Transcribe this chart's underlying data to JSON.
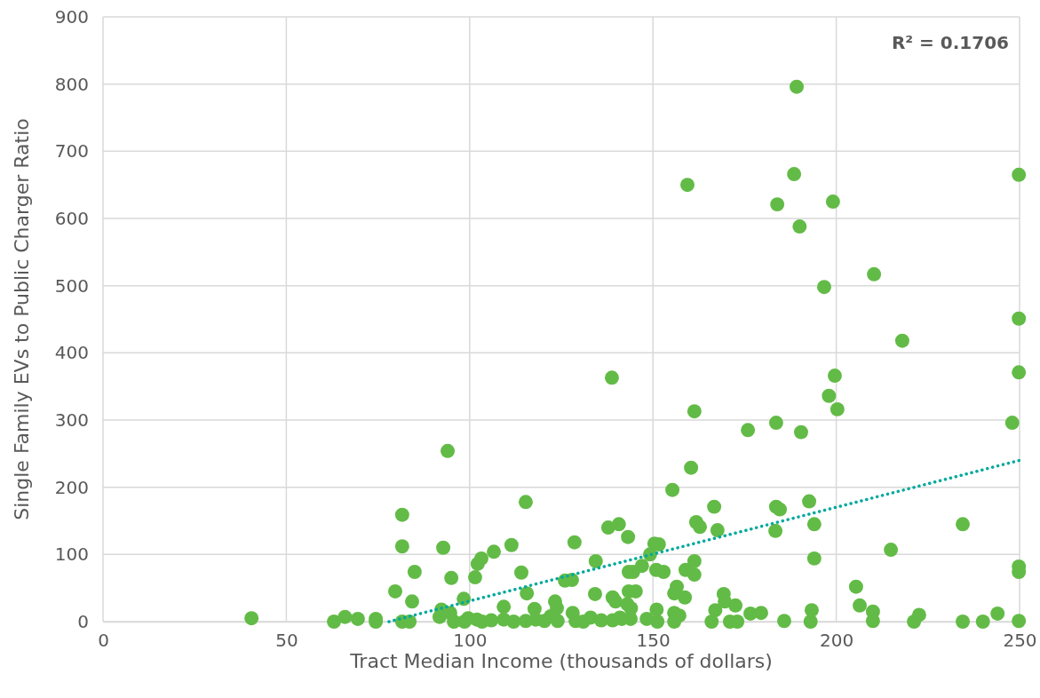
{
  "chart_data": {
    "type": "scatter",
    "xlabel": "Tract Median Income (thousands of dollars)",
    "ylabel": "Single Family EVs to Public Charger Ratio",
    "xlim": [
      0,
      250
    ],
    "xticks": [
      0,
      50,
      100,
      150,
      200,
      250
    ],
    "ylim": [
      0,
      900
    ],
    "yticks": [
      0,
      100,
      200,
      300,
      400,
      500,
      600,
      700,
      800,
      900
    ],
    "grid": true,
    "annotations": [
      "R² = 0.1706"
    ],
    "series": [
      {
        "color": "#62bb46",
        "marker": "circle",
        "x": [
          40.5,
          63,
          66,
          69.5,
          74.4,
          74.4,
          79.7,
          81.6,
          81.6,
          81.6,
          83.6,
          84.3,
          85,
          91.8,
          92.3,
          92.8,
          94,
          94.7,
          95,
          95.7,
          98.4,
          98.6,
          99.6,
          101.5,
          102,
          102.2,
          103.2,
          103.4,
          105.9,
          106.6,
          109.3,
          109.3,
          111.4,
          112,
          114.1,
          115.3,
          115.3,
          115.6,
          117.7,
          118,
          120.4,
          122.1,
          123.3,
          123.8,
          124,
          126,
          127.9,
          128.1,
          128.6,
          128.9,
          131,
          133,
          134.2,
          134.4,
          135.9,
          137.8,
          138.8,
          139,
          139,
          139.8,
          140.7,
          141,
          141.5,
          143,
          143.2,
          143.4,
          143.4,
          143.9,
          144,
          144.6,
          145.3,
          147,
          148.3,
          149.2,
          150.4,
          150.9,
          151,
          151.2,
          151.6,
          152.9,
          155.3,
          155.8,
          155.8,
          155.8,
          156.5,
          157.2,
          158.7,
          158.9,
          159.4,
          160.4,
          161.3,
          161.3,
          161.3,
          161.8,
          162.8,
          166,
          167,
          166.7,
          167.6,
          169.3,
          169.6,
          171,
          172.5,
          173,
          175.9,
          176.6,
          179.5,
          183.4,
          183.6,
          183.6,
          183.9,
          184.6,
          185.8,
          188.5,
          189.2,
          190,
          190.4,
          192.6,
          193,
          193.3,
          194,
          194,
          196.7,
          198,
          199.1,
          199.6,
          200.3,
          205.4,
          206.4,
          210,
          210,
          210.3,
          214.9,
          218,
          221.2,
          222.6,
          234.5,
          234.5,
          240,
          244,
          248,
          249.8,
          249.8,
          249.8,
          249.8,
          249.8,
          249.8
        ],
        "values": [
          5,
          0,
          7,
          4,
          4,
          0,
          45,
          159,
          112,
          0,
          0,
          30,
          74,
          7,
          18,
          110,
          254,
          13,
          65,
          0,
          34,
          0,
          5,
          66,
          3,
          86,
          94,
          0,
          2,
          104,
          22,
          3,
          114,
          0,
          73,
          1,
          178,
          42,
          19,
          3,
          1,
          8,
          30,
          20,
          1,
          61,
          62,
          13,
          118,
          1,
          0,
          6,
          41,
          90,
          2,
          140,
          363,
          2,
          36,
          30,
          145,
          6,
          4,
          26,
          126,
          74,
          45,
          4,
          20,
          74,
          45,
          83,
          4,
          100,
          116,
          77,
          18,
          0,
          115,
          74,
          196,
          42,
          13,
          0,
          52,
          9,
          36,
          77,
          650,
          229,
          313,
          90,
          70,
          148,
          141,
          0,
          17,
          171,
          136,
          41,
          30,
          0,
          24,
          0,
          285,
          12,
          13,
          135,
          171,
          296,
          621,
          167,
          1,
          666,
          796,
          588,
          282,
          179,
          0,
          17,
          145,
          94,
          498,
          336,
          625,
          366,
          316,
          52,
          24,
          15,
          1,
          517,
          107,
          418,
          0,
          10,
          145,
          0,
          0,
          12,
          296,
          665,
          451,
          371,
          82,
          74,
          1
        ]
      },
      {
        "type": "line",
        "color": "#00a99d",
        "line_style": "dotted",
        "marker": "none",
        "x": [
          78,
          250
        ],
        "values": [
          0,
          240
        ]
      }
    ]
  }
}
